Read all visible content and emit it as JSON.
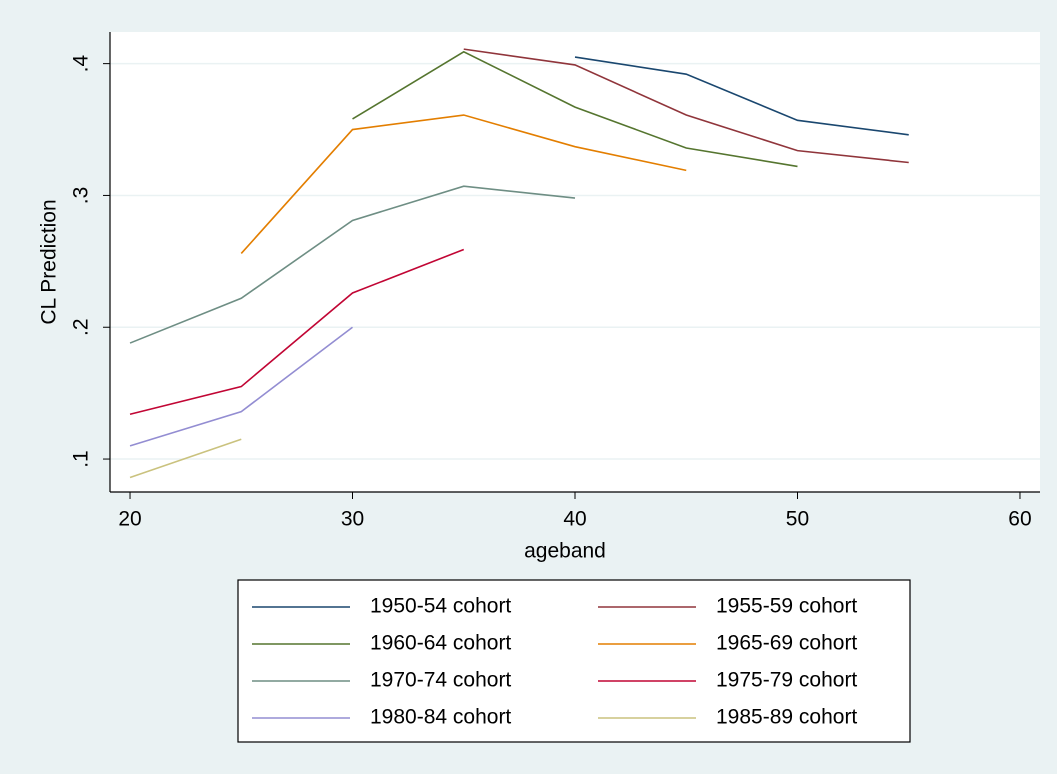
{
  "chart_data": {
    "type": "line",
    "x_label": "ageband",
    "y_label": "CL Prediction",
    "x": [
      20,
      25,
      30,
      35,
      40,
      45,
      50,
      55
    ],
    "series": [
      {
        "name": "1950-54 cohort",
        "color": "#1a476f",
        "values": [
          null,
          null,
          null,
          null,
          0.405,
          0.392,
          0.357,
          0.346
        ]
      },
      {
        "name": "1955-59 cohort",
        "color": "#90353b",
        "values": [
          null,
          null,
          null,
          0.411,
          0.399,
          0.361,
          0.334,
          0.325
        ]
      },
      {
        "name": "1960-64 cohort",
        "color": "#55752f",
        "values": [
          null,
          null,
          0.358,
          0.409,
          0.367,
          0.336,
          0.322,
          null
        ]
      },
      {
        "name": "1965-69 cohort",
        "color": "#e37e00",
        "values": [
          null,
          0.256,
          0.35,
          0.361,
          0.337,
          0.319,
          null,
          null
        ]
      },
      {
        "name": "1970-74 cohort",
        "color": "#6e8e84",
        "values": [
          0.188,
          0.222,
          0.281,
          0.307,
          0.298,
          null,
          null,
          null
        ]
      },
      {
        "name": "1975-79 cohort",
        "color": "#c10534",
        "values": [
          0.134,
          0.155,
          0.226,
          0.259,
          null,
          null,
          null,
          null
        ]
      },
      {
        "name": "1980-84 cohort",
        "color": "#938dd2",
        "values": [
          0.11,
          0.136,
          0.2,
          null,
          null,
          null,
          null,
          null
        ]
      },
      {
        "name": "1985-89 cohort",
        "color": "#cac27e",
        "values": [
          0.086,
          0.115,
          null,
          null,
          null,
          null,
          null,
          null
        ]
      }
    ],
    "xlim": [
      19.1,
      60.9
    ],
    "xticks": [
      20,
      30,
      40,
      50,
      60
    ],
    "ylim": [
      0.075,
      0.424
    ],
    "yticks": [
      {
        "value": 0.1,
        "label": ".1"
      },
      {
        "value": 0.2,
        "label": ".2"
      },
      {
        "value": 0.3,
        "label": ".3"
      },
      {
        "value": 0.4,
        "label": ".4"
      }
    ],
    "grid": true
  }
}
